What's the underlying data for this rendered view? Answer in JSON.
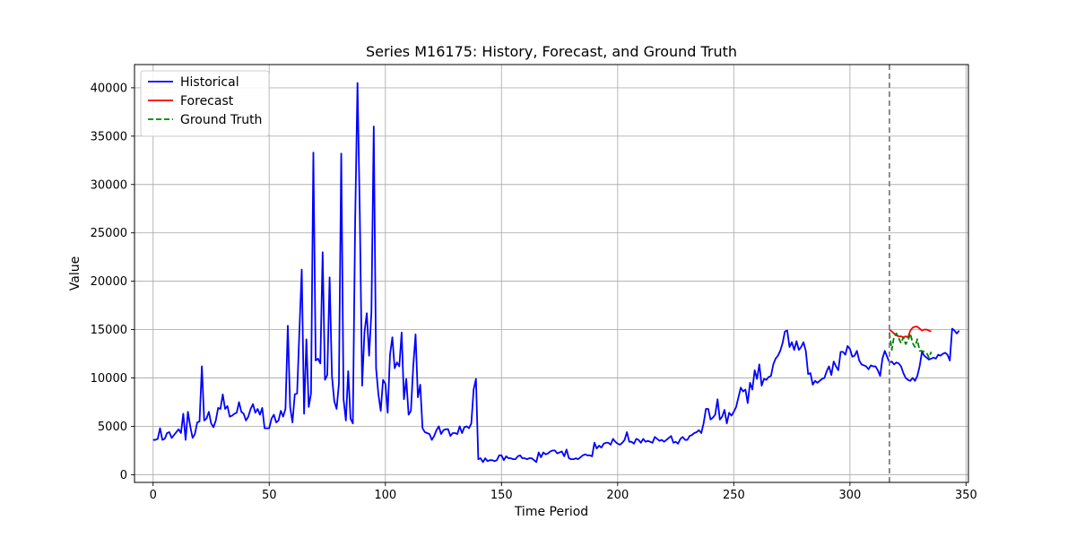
{
  "chart_data": {
    "type": "line",
    "title": "Series M16175: History, Forecast, and Ground Truth",
    "xlabel": "Time Period",
    "ylabel": "Value",
    "xlim": [
      -8,
      351
    ],
    "ylim": [
      -800,
      42400
    ],
    "xticks": [
      0,
      50,
      100,
      150,
      200,
      250,
      300,
      350
    ],
    "yticks": [
      0,
      5000,
      10000,
      15000,
      20000,
      25000,
      30000,
      35000,
      40000
    ],
    "grid": true,
    "legend_position": "top-left",
    "forecast_start": 317,
    "forecast_marker_color": "#808080",
    "series": [
      {
        "name": "Historical",
        "color": "#0000ff",
        "style": "solid",
        "x_start": 0,
        "values": [
          3600,
          3600,
          3700,
          4800,
          3600,
          3700,
          4300,
          4400,
          3800,
          4100,
          4400,
          4700,
          4300,
          6300,
          3600,
          6500,
          5000,
          3800,
          4200,
          5400,
          5500,
          11200,
          5600,
          5800,
          6500,
          5300,
          4900,
          5600,
          6900,
          6800,
          8300,
          6800,
          7100,
          6000,
          6100,
          6300,
          6400,
          7500,
          6500,
          6300,
          5600,
          6000,
          6800,
          7300,
          6400,
          6800,
          6200,
          6900,
          4800,
          4800,
          4800,
          5800,
          6200,
          5400,
          5600,
          6600,
          6000,
          6800,
          15400,
          7000,
          5400,
          8300,
          8400,
          14900,
          21200,
          6300,
          14000,
          7000,
          8400,
          33300,
          11800,
          12000,
          11500,
          23000,
          9800,
          10300,
          20400,
          10200,
          7600,
          6800,
          9400,
          33200,
          7800,
          5600,
          10700,
          5800,
          5300,
          26300,
          40500,
          26900,
          9200,
          14700,
          16700,
          12300,
          16800,
          36000,
          11000,
          8300,
          6600,
          9800,
          9400,
          6400,
          12400,
          14200,
          11000,
          11600,
          11200,
          14700,
          7800,
          9900,
          6200,
          6600,
          11200,
          14500,
          8000,
          9300,
          4800,
          4400,
          4300,
          4200,
          3600,
          4000,
          4600,
          5000,
          4200,
          4600,
          4700,
          4700,
          4000,
          4300,
          4300,
          4200,
          5000,
          4300,
          4900,
          5000,
          4800,
          5300,
          8800,
          9900,
          1600,
          1700,
          1300,
          1700,
          1400,
          1500,
          1500,
          1400,
          1500,
          2000,
          2000,
          1500,
          1900,
          1700,
          1700,
          1600,
          1600,
          1900,
          2000,
          1700,
          1700,
          1600,
          1700,
          1700,
          1500,
          1300,
          2300,
          1800,
          2300,
          2100,
          2200,
          2400,
          2500,
          2500,
          2200,
          2300,
          2400,
          1900,
          2600,
          1700,
          1600,
          1600,
          1700,
          1600,
          1800,
          2000,
          2100,
          2000,
          2000,
          1900,
          3300,
          2700,
          3000,
          2800,
          3200,
          3300,
          3300,
          3100,
          3700,
          3400,
          3200,
          3100,
          3300,
          3600,
          4400,
          3400,
          3400,
          3200,
          3700,
          3600,
          3300,
          3700,
          3400,
          3500,
          3400,
          3300,
          3900,
          3700,
          3500,
          3600,
          3400,
          3600,
          3800,
          4000,
          3300,
          3400,
          3200,
          3700,
          3900,
          3600,
          3600,
          4000,
          4100,
          4300,
          4400,
          4600,
          4300,
          5300,
          6800,
          6800,
          5700,
          5900,
          6200,
          7800,
          5700,
          6000,
          6700,
          5300,
          6400,
          6100,
          6500,
          7000,
          8000,
          9000,
          8600,
          8800,
          7400,
          9500,
          8800,
          10800,
          9900,
          11400,
          9200,
          9900,
          9800,
          10100,
          10200,
          11400,
          12000,
          12300,
          12800,
          13600,
          14800,
          14900,
          13200,
          13700,
          12900,
          13800,
          12900,
          13200,
          13700,
          12800,
          10400,
          10500,
          9300,
          9700,
          9500,
          9700,
          9900,
          10000,
          10700,
          11200,
          10300,
          11700,
          11200,
          10800,
          12700,
          12700,
          12400,
          13300,
          13000,
          12200,
          12300,
          12800,
          11800,
          11400,
          11300,
          11200,
          10900,
          11300,
          11200,
          11200,
          10800,
          10200,
          12000,
          12800,
          12200,
          11600,
          11700,
          11400,
          11600,
          11500,
          11200,
          10500,
          10000,
          9800,
          9700,
          10000,
          9700,
          10200,
          11200,
          12700,
          12300,
          12100,
          11900,
          12000,
          12100,
          12000,
          12400,
          12300,
          12500,
          12600,
          12400,
          11800,
          15100,
          14900,
          14600,
          14900
        ]
      },
      {
        "name": "Forecast",
        "color": "#ff0000",
        "style": "solid",
        "x": [
          317,
          318,
          319,
          320,
          321,
          322,
          323,
          324,
          325,
          326,
          327,
          328,
          329,
          330,
          331,
          332,
          333,
          334,
          335
        ],
        "values": [
          15000,
          14800,
          14600,
          14400,
          14300,
          14300,
          14200,
          14300,
          14200,
          14900,
          15200,
          15300,
          15300,
          15100,
          14900,
          15000,
          15000,
          14900,
          14800
        ]
      },
      {
        "name": "Ground Truth",
        "color": "#008000",
        "style": "dashed",
        "x": [
          317,
          318,
          319,
          320,
          321,
          322,
          323,
          324,
          325,
          326,
          327,
          328,
          329,
          330,
          331,
          332,
          333,
          334,
          335
        ],
        "values": [
          14700,
          12900,
          14300,
          14600,
          14100,
          13600,
          14200,
          13500,
          13900,
          14600,
          13600,
          13200,
          14000,
          12800,
          12800,
          12700,
          12600,
          12100,
          12700
        ]
      }
    ]
  }
}
